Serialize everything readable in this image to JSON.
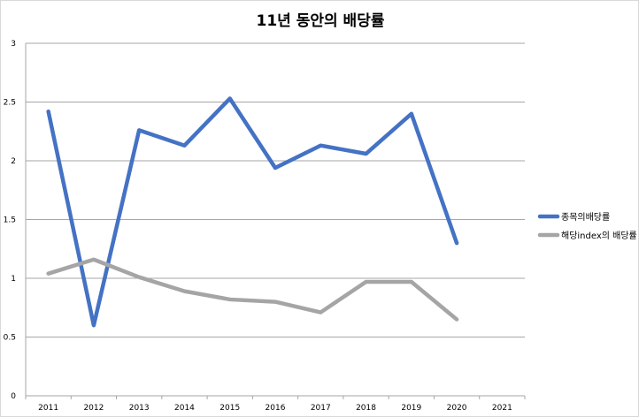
{
  "chart_data": {
    "type": "line",
    "title": "11년 동안의 배당률",
    "xlabel": "",
    "ylabel": "",
    "categories": [
      "2011",
      "2012",
      "2013",
      "2014",
      "2015",
      "2016",
      "2017",
      "2018",
      "2019",
      "2020",
      "2021"
    ],
    "ylim": [
      0,
      3
    ],
    "yticks": [
      0,
      0.5,
      1,
      1.5,
      2,
      2.5,
      3
    ],
    "ytick_labels": [
      "0",
      "0.5",
      "1",
      "1.5",
      "2",
      "2.5",
      "3"
    ],
    "grid": true,
    "legend_position": "right",
    "series": [
      {
        "name": "종목의배당률",
        "color": "#4472c4",
        "values": [
          2.42,
          0.6,
          2.26,
          2.13,
          2.53,
          1.94,
          2.13,
          2.06,
          2.4,
          1.3,
          null
        ]
      },
      {
        "name": "해당index의 배당률",
        "color": "#a5a5a5",
        "values": [
          1.04,
          1.16,
          1.01,
          0.89,
          0.82,
          0.8,
          0.71,
          0.97,
          0.97,
          0.65,
          null
        ]
      }
    ]
  }
}
